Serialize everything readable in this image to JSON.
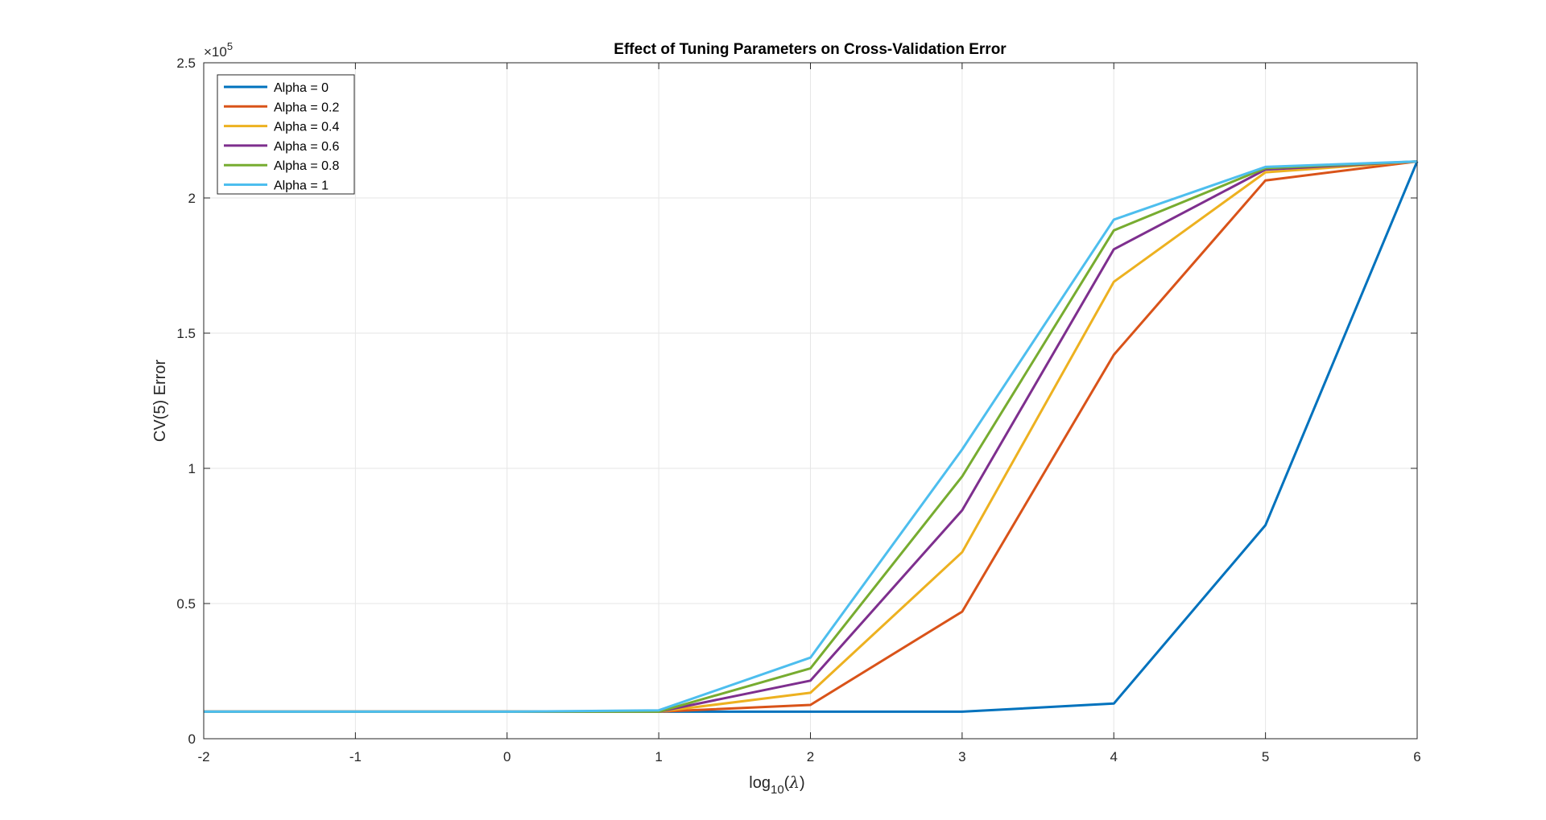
{
  "chart_data": {
    "type": "line",
    "title": "Effect of Tuning Parameters on Cross-Validation Error",
    "xlabel": {
      "base": "log",
      "sub": "10",
      "paren_open": "(",
      "symbol": "λ",
      "paren_close": ")"
    },
    "ylabel": "CV(5) Error",
    "y_exponent": {
      "prefix": "×10",
      "power": "5"
    },
    "xlim": [
      -2,
      6
    ],
    "ylim": [
      0,
      2.5
    ],
    "x_ticks": [
      -2,
      -1,
      0,
      1,
      2,
      3,
      4,
      5,
      6
    ],
    "y_ticks": [
      0,
      0.5,
      1,
      1.5,
      2,
      2.5
    ],
    "x_tick_labels": [
      "-2",
      "-1",
      "0",
      "1",
      "2",
      "3",
      "4",
      "5",
      "6"
    ],
    "y_tick_labels": [
      "0",
      "0.5",
      "1",
      "1.5",
      "2",
      "2.5"
    ],
    "grid": true,
    "legend_position": "top-left",
    "x": [
      -2,
      -1,
      0,
      1,
      2,
      3,
      4,
      5,
      6
    ],
    "series": [
      {
        "name": "Alpha = 0",
        "color": "#0072BD",
        "values": [
          0.1,
          0.1,
          0.1,
          0.1,
          0.1,
          0.1,
          0.13,
          0.79,
          2.135
        ]
      },
      {
        "name": "Alpha = 0.2",
        "color": "#D95319",
        "values": [
          0.1,
          0.1,
          0.1,
          0.1,
          0.125,
          0.47,
          1.42,
          2.065,
          2.135
        ]
      },
      {
        "name": "Alpha = 0.4",
        "color": "#EDB120",
        "values": [
          0.1,
          0.1,
          0.1,
          0.1,
          0.17,
          0.69,
          1.69,
          2.095,
          2.135
        ]
      },
      {
        "name": "Alpha = 0.6",
        "color": "#7E2F8E",
        "values": [
          0.1,
          0.1,
          0.1,
          0.1,
          0.215,
          0.845,
          1.81,
          2.105,
          2.135
        ]
      },
      {
        "name": "Alpha = 0.8",
        "color": "#77AC30",
        "values": [
          0.1,
          0.1,
          0.1,
          0.1,
          0.26,
          0.97,
          1.88,
          2.11,
          2.135
        ]
      },
      {
        "name": "Alpha = 1",
        "color": "#4DBEEE",
        "values": [
          0.1,
          0.1,
          0.1,
          0.105,
          0.3,
          1.07,
          1.92,
          2.115,
          2.135
        ]
      }
    ]
  }
}
